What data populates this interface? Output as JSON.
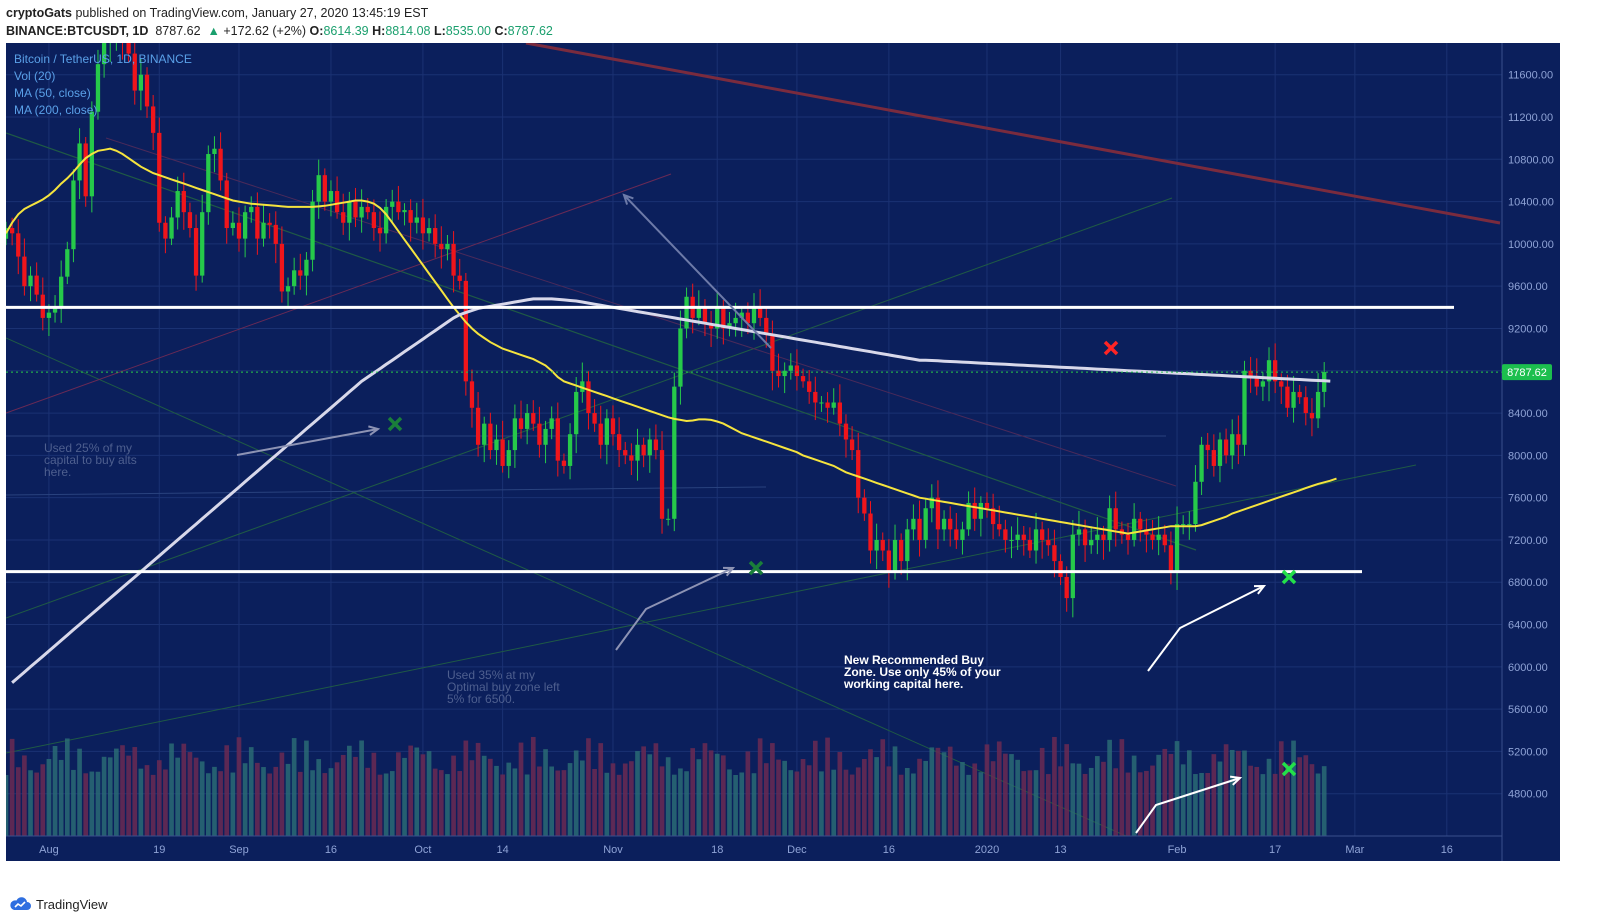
{
  "header": {
    "author": "cryptoGats",
    "published_text": "published on TradingView.com, January 27, 2020 13:45:19 EST",
    "symbol": "BINANCE:BTCUSDT, 1D",
    "last": "8787.62",
    "change": "+172.62 (+2%)",
    "o_label": "O:",
    "o_value": "8614.39",
    "h_label": "H:",
    "h_value": "8814.08",
    "l_label": "L:",
    "l_value": "8535.00",
    "c_label": "C:",
    "c_value": "8787.62"
  },
  "legend": {
    "title": "Bitcoin / TetherUS, 1D, BINANCE",
    "vol": "Vol (20)",
    "ma50": "MA (50, close)",
    "ma200": "MA (200, close)"
  },
  "annotations": {
    "note1": [
      "Used 25% of my",
      "capital to buy alts",
      "here."
    ],
    "note2": [
      "Used 35% at my",
      "Optimal buy zone left",
      "5% for 6500."
    ],
    "note3": [
      "New Recommended Buy",
      "Zone. Use only 45% of your",
      "working capital here."
    ]
  },
  "price_label": "8787.62",
  "footer": {
    "brand": "TradingView"
  },
  "colors": {
    "background": "#0b1f5c",
    "up": "#26c94a",
    "down": "#f0151b",
    "ma50": "#f5e43e",
    "ma200": "#d8d8ea",
    "price_tag": "#1cbf4e"
  },
  "chart_data": {
    "type": "candlestick",
    "title": "Bitcoin / TetherUS, 1D, BINANCE",
    "y_axis_ticks": [
      4800,
      5200,
      5600,
      6000,
      6400,
      6800,
      7200,
      7600,
      8000,
      8400,
      8800,
      9200,
      9600,
      10000,
      10400,
      10800,
      11200,
      11600
    ],
    "x_axis_ticks": [
      "Aug",
      "19",
      "Sep",
      "16",
      "Oct",
      "14",
      "Nov",
      "18",
      "Dec",
      "16",
      "2020",
      "13",
      "Feb",
      "17",
      "Mar",
      "16"
    ],
    "x_axis_tick_dates": [
      "2019-08-01",
      "2019-08-19",
      "2019-09-01",
      "2019-09-16",
      "2019-10-01",
      "2019-10-14",
      "2019-11-01",
      "2019-11-18",
      "2019-12-01",
      "2019-12-16",
      "2020-01-01",
      "2020-01-13",
      "2020-02-01",
      "2020-02-17",
      "2020-03-01",
      "2020-03-16"
    ],
    "ylim": [
      4400,
      11900
    ],
    "xlim": [
      "2019-07-25",
      "2020-03-25"
    ],
    "last_price": 8787.62,
    "horizontal_levels": [
      9400,
      6900
    ],
    "closes": [
      10150,
      10100,
      9880,
      9600,
      9700,
      9520,
      9300,
      9350,
      9400,
      9690,
      9950,
      10600,
      10950,
      10450,
      11250,
      11700,
      11900,
      11930,
      11950,
      11900,
      11800,
      11450,
      11600,
      11300,
      11050,
      10200,
      10050,
      10250,
      10500,
      10300,
      10150,
      9700,
      10300,
      10850,
      10900,
      10600,
      10150,
      10200,
      10050,
      10300,
      10350,
      10050,
      10200,
      10180,
      10000,
      9550,
      9600,
      9750,
      9700,
      9850,
      10400,
      10650,
      10400,
      10500,
      10300,
      10200,
      10400,
      10250,
      10350,
      10300,
      10150,
      10100,
      10350,
      10400,
      10300,
      10320,
      10200,
      10250,
      10100,
      10150,
      10000,
      9950,
      10000,
      9700,
      9650,
      8700,
      8450,
      8100,
      8300,
      8050,
      8150,
      7900,
      8050,
      8350,
      8250,
      8400,
      8300,
      8100,
      8250,
      8350,
      7950,
      7900,
      8200,
      8600,
      8700,
      8400,
      8300,
      8100,
      8350,
      8200,
      8050,
      8000,
      7950,
      8100,
      8000,
      8150,
      8050,
      7400,
      7400,
      8650,
      9200,
      9500,
      9300,
      9400,
      9250,
      9200,
      9400,
      9200,
      9250,
      9300,
      9350,
      9250,
      9400,
      9300,
      9150,
      8800,
      8750,
      8800,
      8850,
      8750,
      8700,
      8600,
      8500,
      8500,
      8450,
      8500,
      8300,
      8150,
      8050,
      7600,
      7450,
      7100,
      7200,
      7100,
      6900,
      7200,
      7000,
      7300,
      7400,
      7200,
      7500,
      7600,
      7300,
      7400,
      7300,
      7200,
      7300,
      7550,
      7400,
      7550,
      7500,
      7350,
      7300,
      7200,
      7200,
      7250,
      7200,
      7100,
      7300,
      7200,
      7150,
      7000,
      6850,
      6650,
      7250,
      7300,
      7150,
      7200,
      7250,
      7200,
      7500,
      7300,
      7250,
      7200,
      7400,
      7300,
      7250,
      7200,
      7250,
      7150,
      6900,
      7350,
      7350,
      7350,
      7750,
      8100,
      8050,
      7900,
      8150,
      8000,
      8200,
      8100,
      8800,
      8750,
      8650,
      8700,
      8900,
      8700,
      8650,
      8450,
      8600,
      8550,
      8400,
      8350,
      8600,
      8787.62
    ],
    "ma50": [
      10100,
      10200,
      10280,
      10330,
      10360,
      10390,
      10420,
      10460,
      10510,
      10570,
      10620,
      10680,
      10750,
      10810,
      10850,
      10880,
      10890,
      10900,
      10880,
      10850,
      10810,
      10770,
      10730,
      10700,
      10670,
      10650,
      10630,
      10610,
      10590,
      10570,
      10550,
      10530,
      10510,
      10490,
      10470,
      10450,
      10430,
      10410,
      10400,
      10390,
      10380,
      10375,
      10370,
      10365,
      10360,
      10355,
      10350,
      10350,
      10350,
      10350,
      10350,
      10355,
      10360,
      10370,
      10380,
      10390,
      10400,
      10410,
      10410,
      10400,
      10380,
      10340,
      10280,
      10200,
      10120,
      10040,
      9960,
      9880,
      9800,
      9720,
      9640,
      9560,
      9480,
      9400,
      9330,
      9260,
      9200,
      9150,
      9110,
      9070,
      9040,
      9010,
      8990,
      8970,
      8950,
      8930,
      8910,
      8880,
      8850,
      8800,
      8740,
      8700,
      8680,
      8660,
      8640,
      8620,
      8600,
      8580,
      8560,
      8540,
      8520,
      8500,
      8480,
      8460,
      8440,
      8420,
      8400,
      8380,
      8360,
      8345,
      8335,
      8325,
      8330,
      8340,
      8340,
      8335,
      8320,
      8300,
      8270,
      8240,
      8210,
      8190,
      8170,
      8150,
      8130,
      8110,
      8090,
      8070,
      8050,
      8030,
      8000,
      7980,
      7960,
      7940,
      7920,
      7900,
      7870,
      7840,
      7820,
      7800,
      7780,
      7760,
      7740,
      7720,
      7700,
      7680,
      7660,
      7640,
      7620,
      7600,
      7590,
      7580,
      7570,
      7560,
      7550,
      7540,
      7530,
      7520,
      7510,
      7500,
      7490,
      7480,
      7470,
      7460,
      7450,
      7440,
      7430,
      7420,
      7410,
      7400,
      7390,
      7380,
      7370,
      7360,
      7350,
      7340,
      7330,
      7320,
      7310,
      7300,
      7290,
      7280,
      7270,
      7260,
      7270,
      7280,
      7290,
      7300,
      7310,
      7320,
      7330,
      7330,
      7330,
      7330,
      7330,
      7340,
      7360,
      7380,
      7400,
      7420,
      7450,
      7470,
      7490,
      7510,
      7530,
      7550,
      7570,
      7590,
      7610,
      7630,
      7650,
      7670,
      7690,
      7710,
      7730,
      7745,
      7760,
      7780
    ],
    "ma200": [
      5850,
      5900,
      5950,
      6000,
      6050,
      6100,
      6150,
      6200,
      6250,
      6300,
      6350,
      6400,
      6450,
      6500,
      6550,
      6600,
      6650,
      6700,
      6750,
      6800,
      6850,
      6900,
      6950,
      7000,
      7050,
      7100,
      7150,
      7200,
      7250,
      7300,
      7350,
      7400,
      7450,
      7500,
      7550,
      7600,
      7650,
      7700,
      7750,
      7800,
      7850,
      7900,
      7950,
      8000,
      8050,
      8100,
      8150,
      8200,
      8250,
      8300,
      8350,
      8400,
      8450,
      8500,
      8550,
      8600,
      8650,
      8700,
      8740,
      8780,
      8820,
      8860,
      8900,
      8940,
      8980,
      9020,
      9060,
      9100,
      9140,
      9180,
      9220,
      9260,
      9300,
      9330,
      9350,
      9370,
      9390,
      9400,
      9410,
      9420,
      9430,
      9440,
      9450,
      9460,
      9470,
      9480,
      9480,
      9480,
      9480,
      9475,
      9470,
      9465,
      9460,
      9450,
      9440,
      9430,
      9420,
      9410,
      9400,
      9390,
      9380,
      9370,
      9360,
      9350,
      9340,
      9330,
      9320,
      9310,
      9300,
      9290,
      9280,
      9270,
      9260,
      9250,
      9240,
      9230,
      9220,
      9210,
      9200,
      9190,
      9180,
      9170,
      9160,
      9150,
      9140,
      9130,
      9120,
      9110,
      9100,
      9090,
      9080,
      9070,
      9060,
      9050,
      9040,
      9030,
      9020,
      9010,
      9000,
      8990,
      8980,
      8970,
      8960,
      8950,
      8940,
      8930,
      8920,
      8910,
      8900
    ],
    "ma200_start_date": "2019-07-26",
    "vol_scale": "relative"
  }
}
